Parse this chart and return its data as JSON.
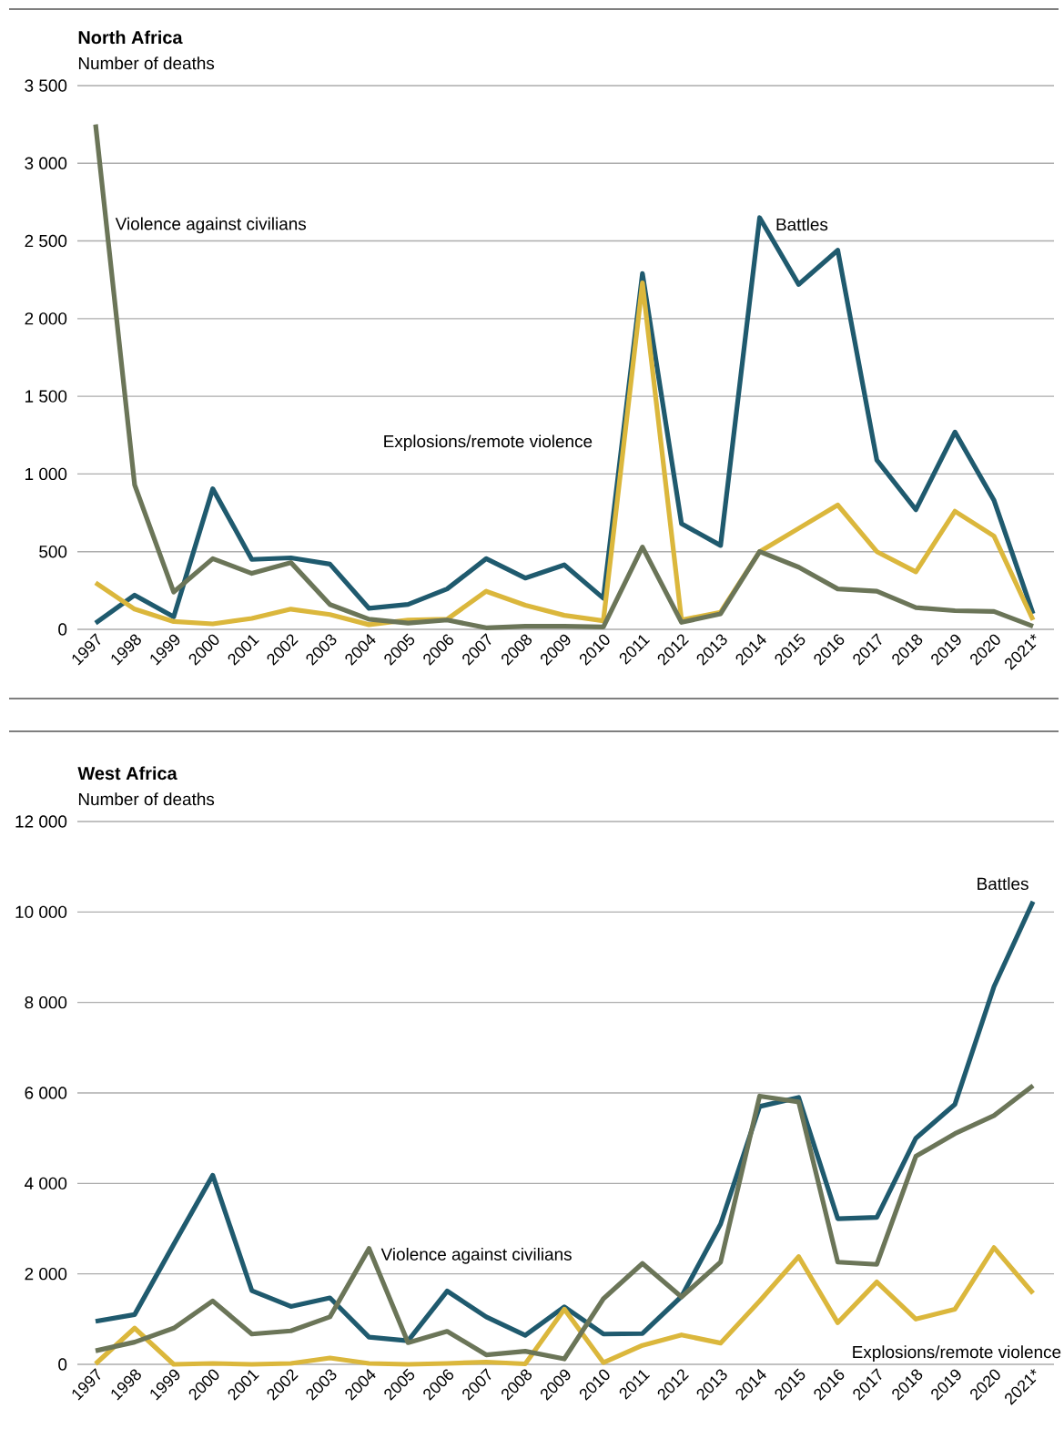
{
  "chart_data": [
    {
      "type": "line",
      "title": "North Africa",
      "ylabel": "Number of deaths",
      "categories": [
        "1997",
        "1998",
        "1999",
        "2000",
        "2001",
        "2002",
        "2003",
        "2004",
        "2005",
        "2006",
        "2007",
        "2008",
        "2009",
        "2010",
        "2011",
        "2012",
        "2013",
        "2014",
        "2015",
        "2016",
        "2017",
        "2018",
        "2019",
        "2020",
        "2021*"
      ],
      "ylim": [
        0,
        3500
      ],
      "yticks": [
        0,
        500,
        {
          "value": 1000,
          "label": "1 000"
        },
        {
          "value": 1500,
          "label": "1 500"
        },
        {
          "value": 2000,
          "label": "2 000"
        },
        {
          "value": 2500,
          "label": "2 500"
        },
        {
          "value": 3000,
          "label": "3 000"
        },
        {
          "value": 3500,
          "label": "3 500"
        }
      ],
      "grid": "y",
      "series": [
        {
          "name": "Battles",
          "color": "#1f5a6e",
          "values": [
            40,
            220,
            80,
            905,
            450,
            460,
            420,
            135,
            160,
            260,
            455,
            330,
            415,
            200,
            2290,
            680,
            540,
            2650,
            2220,
            2440,
            1090,
            770,
            1270,
            830,
            100
          ]
        },
        {
          "name": "Explosions/remote violence",
          "color": "#dbb73c",
          "values": [
            300,
            130,
            50,
            35,
            70,
            130,
            95,
            30,
            60,
            65,
            245,
            155,
            90,
            55,
            2230,
            60,
            110,
            500,
            650,
            800,
            500,
            370,
            760,
            600,
            60
          ]
        },
        {
          "name": "Violence against civilians",
          "color": "#6b7558",
          "values": [
            3250,
            930,
            240,
            455,
            360,
            430,
            160,
            65,
            40,
            60,
            10,
            20,
            20,
            15,
            530,
            45,
            100,
            500,
            400,
            260,
            245,
            140,
            120,
            115,
            20
          ]
        }
      ]
    },
    {
      "type": "line",
      "title": "West Africa",
      "ylabel": "Number of deaths",
      "categories": [
        "1997",
        "1998",
        "1999",
        "2000",
        "2001",
        "2002",
        "2003",
        "2004",
        "2005",
        "2006",
        "2007",
        "2008",
        "2009",
        "2010",
        "2011",
        "2012",
        "2013",
        "2014",
        "2015",
        "2016",
        "2017",
        "2018",
        "2019",
        "2020",
        "2021*"
      ],
      "ylim": [
        0,
        12000
      ],
      "yticks": [
        0,
        {
          "value": 2000,
          "label": "2 000"
        },
        {
          "value": 4000,
          "label": "4 000"
        },
        {
          "value": 6000,
          "label": "6 000"
        },
        {
          "value": 8000,
          "label": "8 000"
        },
        {
          "value": 10000,
          "label": "10 000"
        },
        {
          "value": 12000,
          "label": "12 000"
        }
      ],
      "grid": "y",
      "series": [
        {
          "name": "Battles",
          "color": "#1f5a6e",
          "values": [
            950,
            1100,
            2650,
            4180,
            1630,
            1280,
            1470,
            600,
            520,
            1620,
            1050,
            640,
            1270,
            670,
            680,
            1500,
            3100,
            5700,
            5900,
            3220,
            3250,
            5000,
            5750,
            8350,
            10230
          ]
        },
        {
          "name": "Explosions/remote violence",
          "color": "#dbb73c",
          "values": [
            10,
            800,
            0,
            20,
            0,
            20,
            140,
            20,
            0,
            20,
            50,
            10,
            1220,
            40,
            420,
            650,
            470,
            1400,
            2380,
            920,
            1820,
            1000,
            1220,
            2580,
            1570
          ]
        },
        {
          "name": "Violence against civilians",
          "color": "#6b7558",
          "values": [
            300,
            490,
            800,
            1400,
            670,
            740,
            1050,
            2560,
            480,
            730,
            210,
            290,
            120,
            1450,
            2230,
            1490,
            2260,
            5930,
            5800,
            2260,
            2210,
            4600,
            5100,
            5500,
            6160
          ]
        }
      ]
    }
  ]
}
